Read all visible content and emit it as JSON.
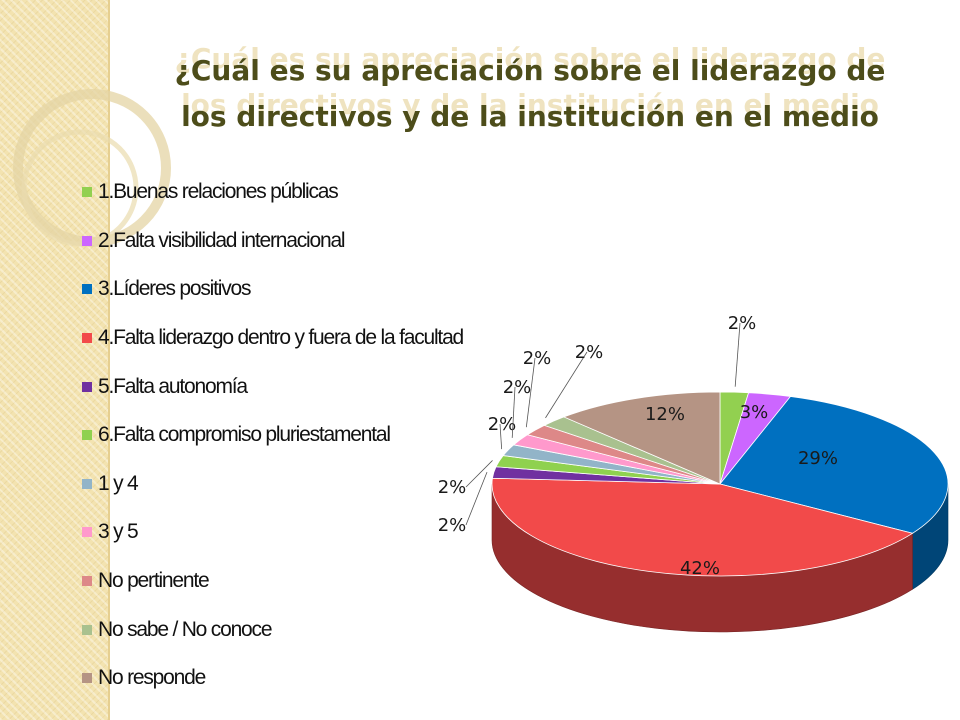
{
  "slide": {
    "title": "¿Cuál es su apreciación sobre el liderazgo de los directivos y de la institución en el medio",
    "title_lines": [
      "¿Cuál es su apreciación sobre el liderazgo de",
      "los directivos y de la institución en el medio"
    ]
  },
  "chart_data": {
    "type": "pie",
    "title": "¿Cuál es su apreciación sobre el liderazgo de los directivos y de la institución en el medio",
    "legend_position": "left",
    "style": "3d",
    "slices": [
      {
        "label": "1.Buenas relaciones públicas",
        "value": 2,
        "display": "2%",
        "color": "#92d050"
      },
      {
        "label": "2.Falta visibilidad internacional",
        "value": 3,
        "display": "3%",
        "color": "#cc66ff"
      },
      {
        "label": "3.Líderes positivos",
        "value": 29,
        "display": "29%",
        "color": "#0070c0"
      },
      {
        "label": "4.Falta liderazgo dentro y fuera de la facultad",
        "value": 42,
        "display": "42%",
        "color": "#f24a4a"
      },
      {
        "label": "5.Falta autonomía",
        "value": 2,
        "display": "2%",
        "color": "#7030a0"
      },
      {
        "label": "6.Falta compromiso pluriestamental",
        "value": 2,
        "display": "2%",
        "color": "#8fd14f"
      },
      {
        "label": "1 y 4",
        "value": 2,
        "display": "2%",
        "color": "#92b4c8"
      },
      {
        "label": "3 y 5",
        "value": 2,
        "display": "2%",
        "color": "#ff99cc"
      },
      {
        "label": "No pertinente",
        "value": 2,
        "display": "2%",
        "color": "#dd8888"
      },
      {
        "label": "No sabe / No conoce",
        "value": 2,
        "display": "2%",
        "color": "#a9c18f"
      },
      {
        "label": "No responde",
        "value": 12,
        "display": "12%",
        "color": "#b59484"
      }
    ]
  }
}
